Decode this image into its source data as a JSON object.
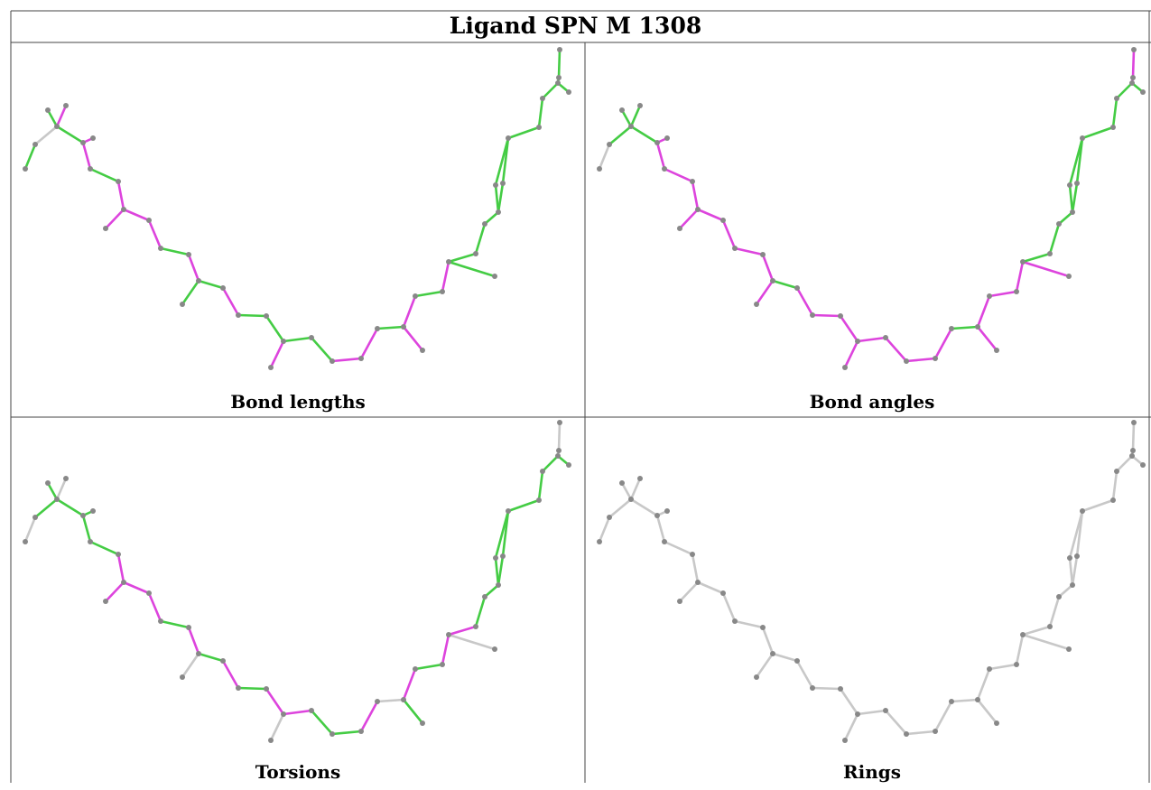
{
  "title": "Ligand SPN M 1308",
  "colors": {
    "green": "#44cc44",
    "magenta": "#dd44dd",
    "grey": "#c8c8c8",
    "atom": "#888888"
  },
  "panels": [
    {
      "caption": "Bond lengths",
      "colors": [
        "g",
        "w",
        "g",
        "m",
        "g",
        "m",
        "m",
        "g",
        "m",
        "m",
        "m",
        "m",
        "g",
        "m",
        "g",
        "g",
        "m",
        "g",
        "g",
        "m",
        "g",
        "g",
        "m",
        "m",
        "g",
        "m",
        "m",
        "g",
        "m",
        "g",
        "g",
        "g",
        "g",
        "g",
        "g",
        "g",
        "g",
        "g",
        "g",
        "g",
        "g",
        "g",
        "g"
      ]
    },
    {
      "caption": "Bond angles",
      "colors": [
        "w",
        "g",
        "g",
        "g",
        "g",
        "m",
        "m",
        "m",
        "m",
        "m",
        "m",
        "m",
        "m",
        "m",
        "m",
        "g",
        "m",
        "m",
        "m",
        "m",
        "m",
        "m",
        "m",
        "m",
        "g",
        "m",
        "m",
        "m",
        "m",
        "m",
        "g",
        "g",
        "g",
        "g",
        "g",
        "g",
        "g",
        "g",
        "g",
        "g",
        "g",
        "m",
        "m"
      ]
    },
    {
      "caption": "Torsions",
      "colors": [
        "w",
        "g",
        "g",
        "w",
        "g",
        "g",
        "g",
        "g",
        "m",
        "m",
        "m",
        "m",
        "g",
        "m",
        "w",
        "g",
        "m",
        "g",
        "m",
        "w",
        "m",
        "g",
        "g",
        "m",
        "w",
        "g",
        "m",
        "g",
        "m",
        "w",
        "m",
        "g",
        "g",
        "g",
        "g",
        "g",
        "g",
        "g",
        "g",
        "g",
        "g",
        "w",
        "w"
      ]
    },
    {
      "caption": "Rings",
      "colors": [
        "w",
        "w",
        "w",
        "w",
        "w",
        "w",
        "w",
        "w",
        "w",
        "w",
        "w",
        "w",
        "w",
        "w",
        "w",
        "w",
        "w",
        "w",
        "w",
        "w",
        "w",
        "w",
        "w",
        "w",
        "w",
        "w",
        "w",
        "w",
        "w",
        "w",
        "w",
        "w",
        "w",
        "w",
        "w",
        "w",
        "w",
        "w",
        "w",
        "w",
        "w",
        "w",
        "w"
      ]
    }
  ]
}
